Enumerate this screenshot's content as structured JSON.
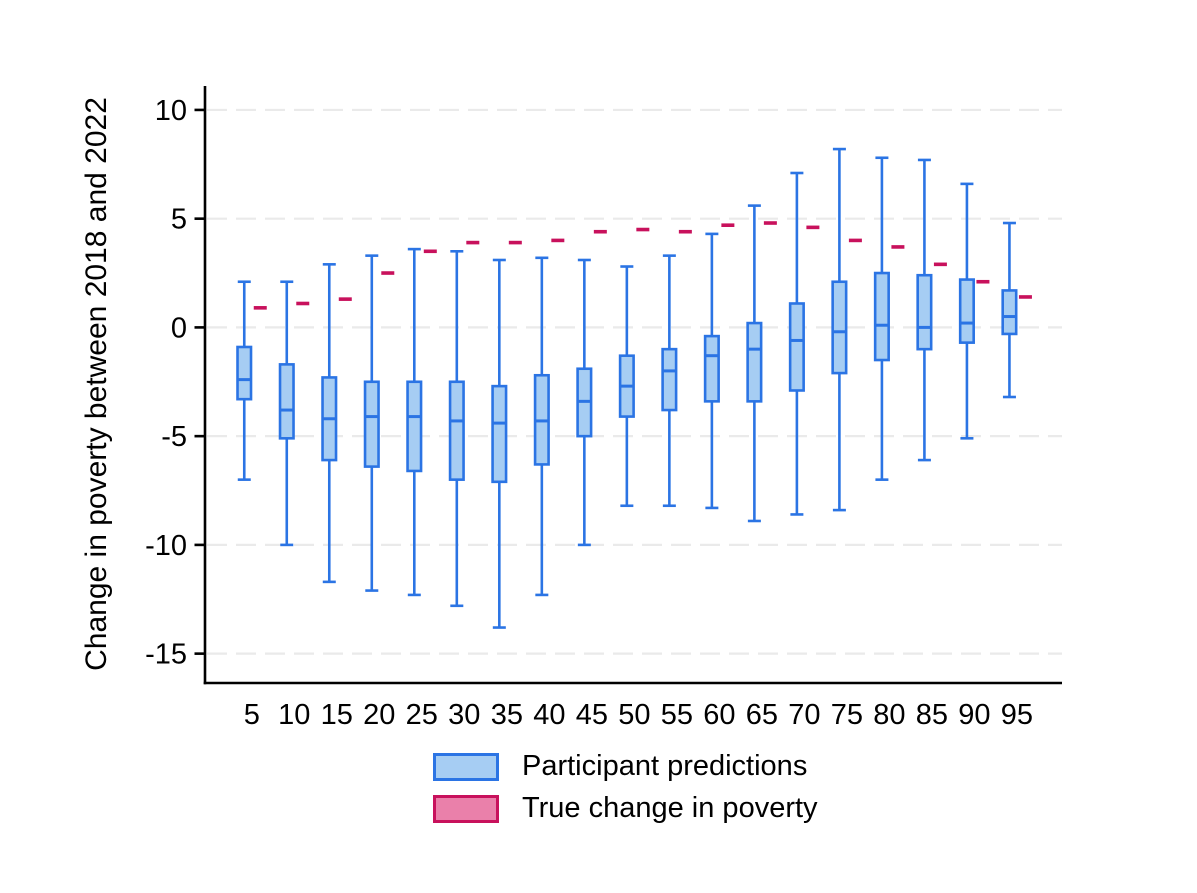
{
  "figure": {
    "background": "#FFFFFF",
    "ylabel": "Change in poverty between 2018 and 2022"
  },
  "legend": {
    "position": "bottom",
    "items": [
      {
        "label": "Participant predictions",
        "fill": "#A6CDF3",
        "stroke": "#2B74E4"
      },
      {
        "label": "True change in poverty",
        "fill": "#EA80AA",
        "stroke": "#C8115C"
      }
    ]
  },
  "colors": {
    "box_fill": "#A6CDF3",
    "box_stroke": "#2B74E4",
    "true_dash": "#C8115C",
    "gridline": "#EAEAEA",
    "axis": "#000000",
    "text": "#000000"
  },
  "chart_data": {
    "type": "box",
    "title": "",
    "xlabel": "",
    "ylabel": "Change in poverty between 2018 and 2022",
    "grid": "horizontal-dashed",
    "legend_position": "bottom",
    "categories": [
      5,
      10,
      15,
      20,
      25,
      30,
      35,
      40,
      45,
      50,
      55,
      60,
      65,
      70,
      75,
      80,
      85,
      90,
      95
    ],
    "y_ticks": [
      10,
      5,
      0,
      -5,
      -10,
      -15
    ],
    "ylim": [
      -16.35,
      11.1
    ],
    "xlim": [
      -0.5,
      100.3
    ],
    "series": [
      {
        "name": "Participant predictions",
        "type": "box-whisker",
        "boxes": [
          {
            "x": 5,
            "whisker_low": -7.0,
            "q1": -3.3,
            "median": -2.4,
            "q3": -0.9,
            "whisker_high": 2.1
          },
          {
            "x": 10,
            "whisker_low": -10.0,
            "q1": -5.1,
            "median": -3.8,
            "q3": -1.7,
            "whisker_high": 2.1
          },
          {
            "x": 15,
            "whisker_low": -11.7,
            "q1": -6.1,
            "median": -4.2,
            "q3": -2.3,
            "whisker_high": 2.9
          },
          {
            "x": 20,
            "whisker_low": -12.1,
            "q1": -6.4,
            "median": -4.1,
            "q3": -2.5,
            "whisker_high": 3.3
          },
          {
            "x": 25,
            "whisker_low": -12.3,
            "q1": -6.6,
            "median": -4.1,
            "q3": -2.5,
            "whisker_high": 3.6
          },
          {
            "x": 30,
            "whisker_low": -12.8,
            "q1": -7.0,
            "median": -4.3,
            "q3": -2.5,
            "whisker_high": 3.5
          },
          {
            "x": 35,
            "whisker_low": -13.8,
            "q1": -7.1,
            "median": -4.4,
            "q3": -2.7,
            "whisker_high": 3.1
          },
          {
            "x": 40,
            "whisker_low": -12.3,
            "q1": -6.3,
            "median": -4.3,
            "q3": -2.2,
            "whisker_high": 3.2
          },
          {
            "x": 45,
            "whisker_low": -10.0,
            "q1": -5.0,
            "median": -3.4,
            "q3": -1.9,
            "whisker_high": 3.1
          },
          {
            "x": 50,
            "whisker_low": -8.2,
            "q1": -4.1,
            "median": -2.7,
            "q3": -1.3,
            "whisker_high": 2.8
          },
          {
            "x": 55,
            "whisker_low": -8.2,
            "q1": -3.8,
            "median": -2.0,
            "q3": -1.0,
            "whisker_high": 3.3
          },
          {
            "x": 60,
            "whisker_low": -8.3,
            "q1": -3.4,
            "median": -1.3,
            "q3": -0.4,
            "whisker_high": 4.3
          },
          {
            "x": 65,
            "whisker_low": -8.9,
            "q1": -3.4,
            "median": -1.0,
            "q3": 0.2,
            "whisker_high": 5.6
          },
          {
            "x": 70,
            "whisker_low": -8.6,
            "q1": -2.9,
            "median": -0.6,
            "q3": 1.1,
            "whisker_high": 7.1
          },
          {
            "x": 75,
            "whisker_low": -8.4,
            "q1": -2.1,
            "median": -0.2,
            "q3": 2.1,
            "whisker_high": 8.2
          },
          {
            "x": 80,
            "whisker_low": -7.0,
            "q1": -1.5,
            "median": 0.1,
            "q3": 2.5,
            "whisker_high": 7.8
          },
          {
            "x": 85,
            "whisker_low": -6.1,
            "q1": -1.0,
            "median": 0.0,
            "q3": 2.4,
            "whisker_high": 7.7
          },
          {
            "x": 90,
            "whisker_low": -5.1,
            "q1": -0.7,
            "median": 0.2,
            "q3": 2.2,
            "whisker_high": 6.6
          },
          {
            "x": 95,
            "whisker_low": -3.2,
            "q1": -0.3,
            "median": 0.5,
            "q3": 1.7,
            "whisker_high": 4.8
          }
        ]
      },
      {
        "name": "True change in poverty",
        "type": "dash",
        "values": [
          {
            "x": 5,
            "y": 0.9
          },
          {
            "x": 10,
            "y": 1.1
          },
          {
            "x": 15,
            "y": 1.3
          },
          {
            "x": 20,
            "y": 2.5
          },
          {
            "x": 25,
            "y": 3.5
          },
          {
            "x": 30,
            "y": 3.9
          },
          {
            "x": 35,
            "y": 3.9
          },
          {
            "x": 40,
            "y": 4.0
          },
          {
            "x": 45,
            "y": 4.4
          },
          {
            "x": 50,
            "y": 4.5
          },
          {
            "x": 55,
            "y": 4.4
          },
          {
            "x": 60,
            "y": 4.7
          },
          {
            "x": 65,
            "y": 4.8
          },
          {
            "x": 70,
            "y": 4.6
          },
          {
            "x": 75,
            "y": 4.0
          },
          {
            "x": 80,
            "y": 3.7
          },
          {
            "x": 85,
            "y": 2.9
          },
          {
            "x": 90,
            "y": 2.1
          },
          {
            "x": 95,
            "y": 1.4
          }
        ]
      }
    ]
  }
}
